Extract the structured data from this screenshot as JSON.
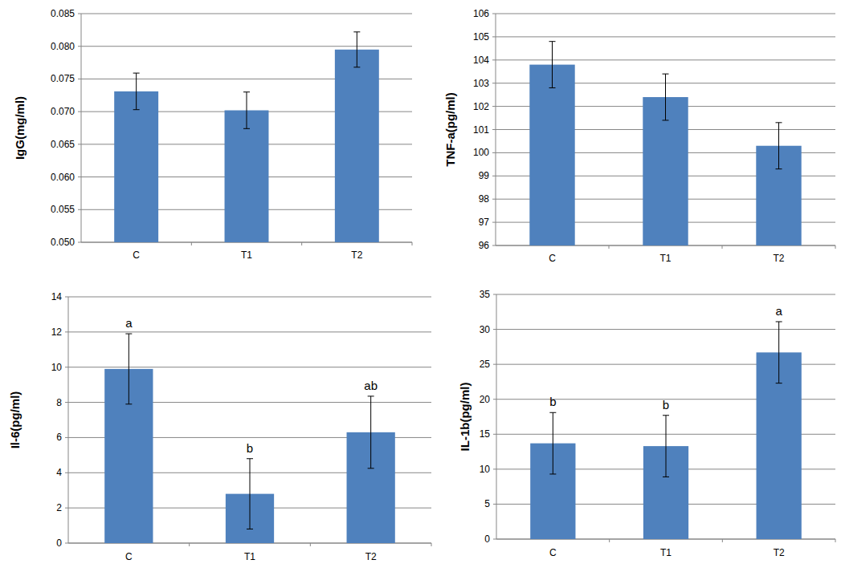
{
  "chart_data": [
    {
      "type": "bar",
      "y_label": "IgG(mg/ml)",
      "categories": [
        "C",
        "T1",
        "T2"
      ],
      "values": [
        0.0731,
        0.0702,
        0.0795
      ],
      "errors": [
        0.0028,
        0.0028,
        0.0027
      ],
      "color": "#4f81bd",
      "ylim": [
        0.05,
        0.085
      ],
      "yticks": [
        {
          "value": 0.05,
          "label": "0.050"
        },
        {
          "value": 0.055,
          "label": "0.055"
        },
        {
          "value": 0.06,
          "label": "0.060"
        },
        {
          "value": 0.065,
          "label": "0.065"
        },
        {
          "value": 0.07,
          "label": "0.070"
        },
        {
          "value": 0.075,
          "label": "0.075"
        },
        {
          "value": 0.08,
          "label": "0.080"
        },
        {
          "value": 0.085,
          "label": "0.085"
        }
      ],
      "grid": true
    },
    {
      "type": "bar",
      "y_label": "TNF-a(pg/ml)",
      "categories": [
        "C",
        "T1",
        "T2"
      ],
      "values": [
        103.8,
        102.4,
        100.3
      ],
      "errors": [
        1.0,
        1.0,
        1.0
      ],
      "color": "#4f81bd",
      "ylim": [
        96,
        106
      ],
      "yticks": [
        96,
        97,
        98,
        99,
        100,
        101,
        102,
        103,
        104,
        105,
        106
      ],
      "grid": true
    },
    {
      "type": "bar",
      "y_label": "Il-6(pg/ml)",
      "categories": [
        "C",
        "T1",
        "T2"
      ],
      "values": [
        9.9,
        2.8,
        6.3
      ],
      "errors": [
        2.0,
        2.0,
        2.05
      ],
      "annotations": [
        "a",
        "b",
        "ab"
      ],
      "color": "#4f81bd",
      "ylim": [
        0,
        14
      ],
      "yticks": [
        0,
        2,
        4,
        6,
        8,
        10,
        12,
        14
      ],
      "grid": true
    },
    {
      "type": "bar",
      "y_label": "IL-1b(pg/ml)",
      "categories": [
        "C",
        "T1",
        "T2"
      ],
      "values": [
        13.7,
        13.3,
        26.7
      ],
      "errors": [
        4.4,
        4.4,
        4.4
      ],
      "annotations": [
        "b",
        "b",
        "a"
      ],
      "color": "#4f81bd",
      "ylim": [
        0,
        35
      ],
      "yticks": [
        0,
        5,
        10,
        15,
        20,
        25,
        30,
        35
      ],
      "grid": true
    }
  ]
}
